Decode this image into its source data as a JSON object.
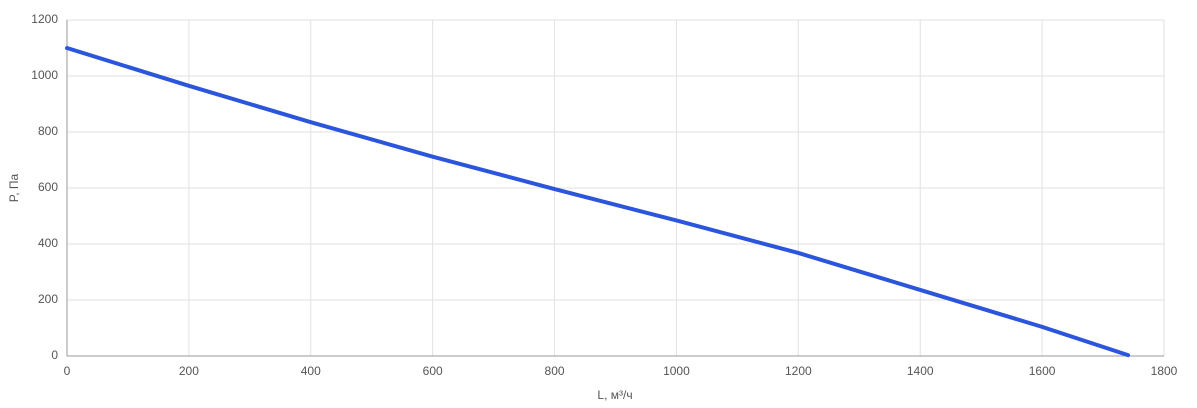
{
  "chart_data": {
    "type": "line",
    "x_label": "L, м³/ч",
    "y_label": "P, Па",
    "x": [
      0,
      200,
      400,
      600,
      800,
      1000,
      1200,
      1400,
      1600,
      1741
    ],
    "series": [
      {
        "color": "#2b56db",
        "values": [
          1100,
          965,
          835,
          712,
          596,
          484,
          368,
          236,
          104,
          3
        ]
      }
    ],
    "xlim": [
      0,
      1800
    ],
    "xticks": [
      0,
      200,
      400,
      600,
      800,
      1000,
      1200,
      1400,
      1600,
      1800
    ],
    "ylim": [
      0,
      1200
    ],
    "yticks": [
      0,
      200,
      400,
      600,
      800,
      1000,
      1200
    ],
    "grid": true
  }
}
